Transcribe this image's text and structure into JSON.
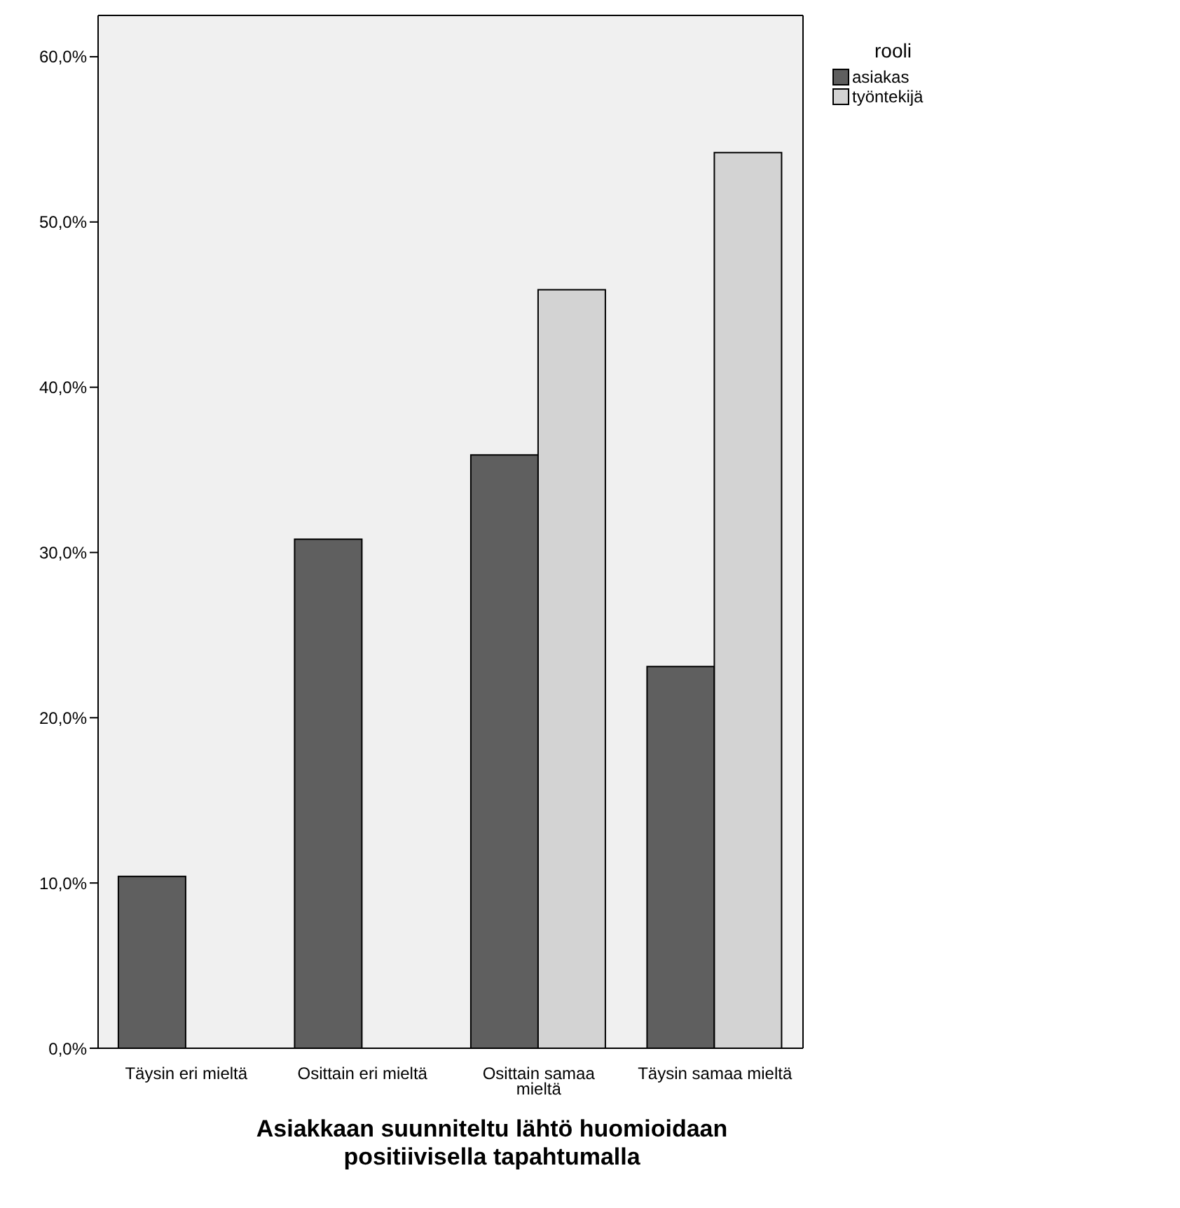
{
  "chart_data": {
    "type": "bar",
    "xlabel": "Asiakkaan suunniteltu lähtö huomioidaan positiivisella tapahtumalla",
    "legend_title": "rooli",
    "legend": "top right",
    "grid": false,
    "categories": [
      "Täysin eri mieltä",
      "Osittain eri mieltä",
      "Osittain samaa mieltä",
      "Täysin samaa mieltä"
    ],
    "series": [
      {
        "name": "asiakas",
        "color": "#5f5f5f",
        "values": [
          10.4,
          30.8,
          35.9,
          23.1
        ]
      },
      {
        "name": "työntekijä",
        "color": "#d3d3d3",
        "values": [
          0,
          0,
          45.9,
          54.2
        ]
      }
    ],
    "ylim": [
      0,
      62.5
    ],
    "yticks": [
      {
        "value": 0,
        "label": "0,0%"
      },
      {
        "value": 10,
        "label": "10,0%"
      },
      {
        "value": 20,
        "label": "20,0%"
      },
      {
        "value": 30,
        "label": "30,0%"
      },
      {
        "value": 40,
        "label": "40,0%"
      },
      {
        "value": 50,
        "label": "50,0%"
      },
      {
        "value": 60,
        "label": "60,0%"
      }
    ]
  }
}
